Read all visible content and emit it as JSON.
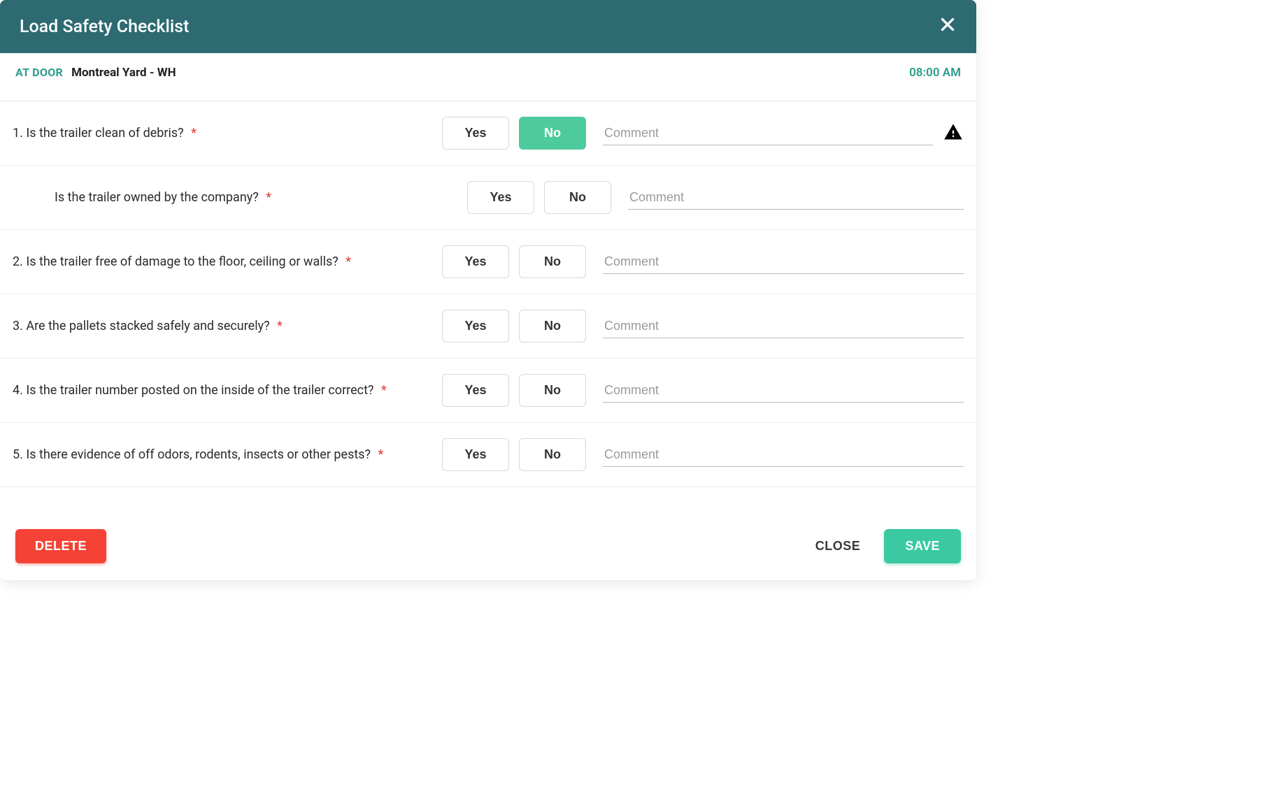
{
  "colors": {
    "header_bg": "#2d6a72",
    "accent": "#2a9d8f",
    "toggle_active": "#4ecb9d",
    "save_bg": "#3ac9a0",
    "delete_bg": "#f44336",
    "border": "#ececec",
    "required": "#e53935"
  },
  "header": {
    "title": "Load Safety Checklist"
  },
  "subheader": {
    "status": "AT DOOR",
    "location": "Montreal Yard - WH",
    "time": "08:00 AM"
  },
  "buttons": {
    "yes": "Yes",
    "no": "No",
    "delete": "DELETE",
    "close": "CLOSE",
    "save": "SAVE"
  },
  "comment_placeholder": "Comment",
  "required_mark": "*",
  "questions": [
    {
      "id": "q1",
      "text": "1. Is the trailer clean of debris?",
      "required": true,
      "indented": false,
      "selected": "no",
      "warning": true
    },
    {
      "id": "q1a",
      "text": "Is the trailer owned by the company?",
      "required": true,
      "indented": true,
      "selected": null,
      "warning": false
    },
    {
      "id": "q2",
      "text": "2. Is the trailer free of damage to the floor, ceiling or walls?",
      "required": true,
      "indented": false,
      "selected": null,
      "warning": false
    },
    {
      "id": "q3",
      "text": "3. Are the pallets stacked safely and securely?",
      "required": true,
      "indented": false,
      "selected": null,
      "warning": false
    },
    {
      "id": "q4",
      "text": "4. Is the trailer number posted on the inside of the trailer correct?",
      "required": true,
      "indented": false,
      "selected": null,
      "warning": false
    },
    {
      "id": "q5",
      "text": "5. Is there evidence of off odors, rodents, insects or other pests?",
      "required": true,
      "indented": false,
      "selected": null,
      "warning": false
    }
  ]
}
